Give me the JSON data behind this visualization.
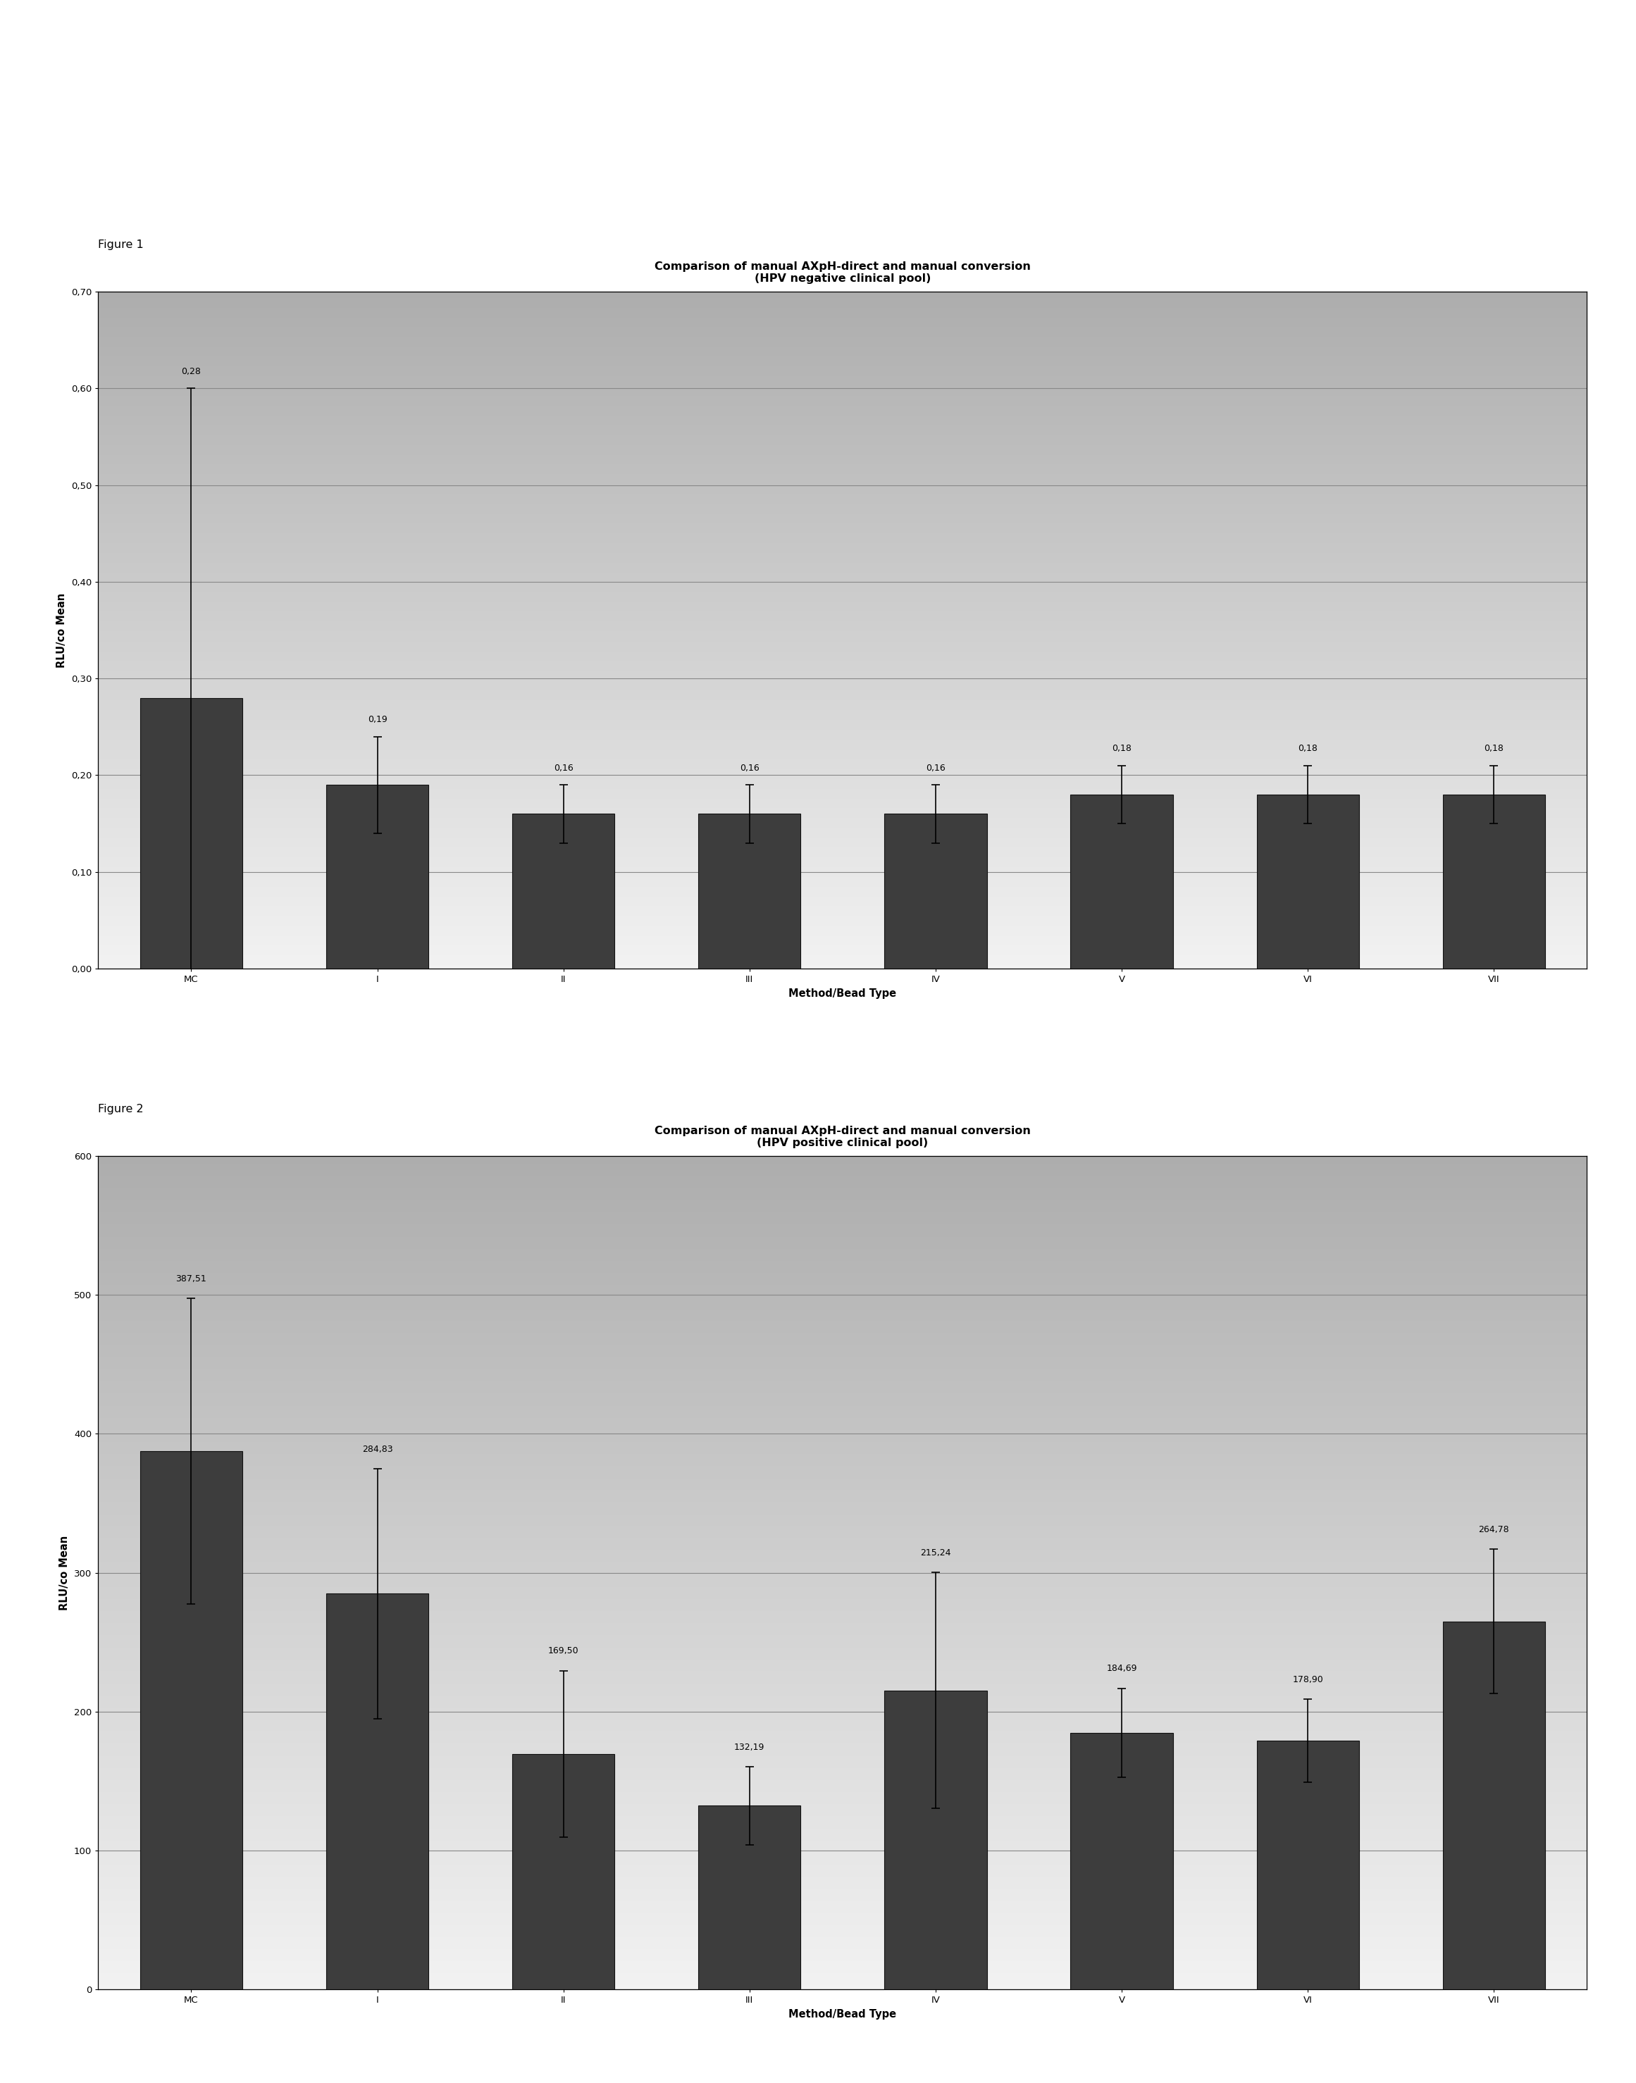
{
  "fig1": {
    "title_line1": "Comparison of manual AXpH-direct and manual conversion",
    "title_line2": "(HPV negative clinical pool)",
    "categories": [
      "MC",
      "I",
      "II",
      "III",
      "IV",
      "V",
      "VI",
      "VII"
    ],
    "values": [
      0.28,
      0.19,
      0.16,
      0.16,
      0.16,
      0.18,
      0.18,
      0.18
    ],
    "errors": [
      0.32,
      0.05,
      0.03,
      0.03,
      0.03,
      0.03,
      0.03,
      0.03
    ],
    "labels": [
      "0,28",
      "0,19",
      "0,16",
      "0,16",
      "0,16",
      "0,18",
      "0,18",
      "0,18"
    ],
    "ylabel": "RLU/co Mean",
    "xlabel": "Method/Bead Type",
    "ylim": [
      0.0,
      0.7
    ],
    "yticks": [
      0.0,
      0.1,
      0.2,
      0.3,
      0.4,
      0.5,
      0.6,
      0.7
    ],
    "ytick_labels": [
      "0,00",
      "0,10",
      "0,20",
      "0,30",
      "0,40",
      "0,50",
      "0,60",
      "0,70"
    ],
    "figure_label": "Figure 1"
  },
  "fig2": {
    "title_line1": "Comparison of manual AXpH-direct and manual conversion",
    "title_line2": "(HPV positive clinical pool)",
    "categories": [
      "MC",
      "I",
      "II",
      "III",
      "IV",
      "V",
      "VI",
      "VII"
    ],
    "values": [
      387.51,
      284.83,
      169.5,
      132.19,
      215.24,
      184.69,
      178.9,
      264.78
    ],
    "errors": [
      110.0,
      90.0,
      60.0,
      28.0,
      85.0,
      32.0,
      30.0,
      52.0
    ],
    "labels": [
      "387,51",
      "284,83",
      "169,50",
      "132,19",
      "215,24",
      "184,69",
      "178,90",
      "264,78"
    ],
    "ylabel": "RLU/co Mean",
    "xlabel": "Method/Bead Type",
    "ylim": [
      0,
      600
    ],
    "yticks": [
      0,
      100,
      200,
      300,
      400,
      500,
      600
    ],
    "ytick_labels": [
      "0",
      "100",
      "200",
      "300",
      "400",
      "500",
      "600"
    ],
    "figure_label": "Figure 2"
  },
  "bar_color": "#3d3d3d",
  "bar_edge_color": "#111111",
  "title_fontsize": 11.5,
  "label_fontsize": 9.0,
  "tick_fontsize": 9.5,
  "axis_label_fontsize": 10.5,
  "figure_label_fontsize": 11.5,
  "page_bg": "#ffffff"
}
